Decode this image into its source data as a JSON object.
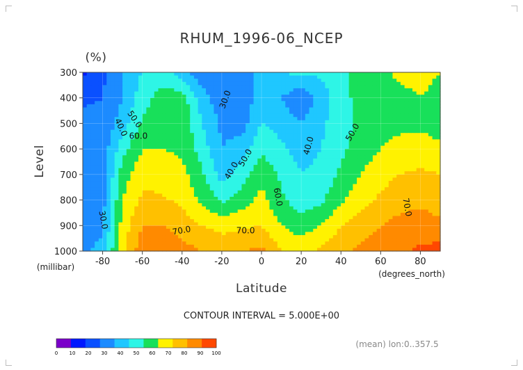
{
  "chart_data": {
    "type": "heatmap",
    "title": "RHUM_1996-06_NCEP",
    "units": "(%)",
    "xlabel": "Latitude",
    "ylabel": "Level",
    "x_units": "(degrees_north)",
    "y_units": "(millibar)",
    "xlim": [
      -90,
      90
    ],
    "ylim": [
      1000,
      300
    ],
    "x_ticks": [
      -80,
      -60,
      -40,
      -20,
      0,
      20,
      40,
      60,
      80
    ],
    "y_ticks": [
      300,
      400,
      500,
      600,
      700,
      800,
      900,
      1000
    ],
    "lat": [
      -90,
      -80,
      -70,
      -60,
      -50,
      -40,
      -30,
      -20,
      -10,
      0,
      10,
      20,
      30,
      40,
      50,
      60,
      70,
      80,
      90
    ],
    "levels": [
      300,
      400,
      500,
      600,
      700,
      800,
      900,
      1000
    ],
    "values": [
      [
        8,
        18,
        30,
        40,
        45,
        33,
        24,
        20,
        24,
        35,
        40,
        42,
        42,
        48,
        54,
        58,
        62,
        62,
        60
      ],
      [
        18,
        20,
        30,
        46,
        54,
        56,
        34,
        24,
        20,
        38,
        30,
        22,
        34,
        46,
        54,
        56,
        58,
        60,
        58
      ],
      [
        24,
        22,
        35,
        52,
        56,
        58,
        40,
        28,
        26,
        40,
        36,
        30,
        38,
        46,
        52,
        56,
        58,
        58,
        56
      ],
      [
        26,
        24,
        46,
        60,
        60,
        58,
        45,
        30,
        34,
        48,
        42,
        36,
        40,
        48,
        55,
        60,
        63,
        64,
        62
      ],
      [
        24,
        24,
        55,
        67,
        67,
        63,
        52,
        36,
        45,
        57,
        48,
        40,
        43,
        52,
        60,
        66,
        70,
        72,
        70
      ],
      [
        23,
        26,
        60,
        72,
        71,
        68,
        58,
        48,
        55,
        63,
        52,
        44,
        48,
        58,
        66,
        72,
        77,
        78,
        76
      ],
      [
        25,
        28,
        64,
        80,
        80,
        75,
        70,
        66,
        68,
        70,
        60,
        55,
        60,
        70,
        75,
        80,
        83,
        84,
        82
      ],
      [
        28,
        33,
        68,
        86,
        88,
        84,
        80,
        78,
        80,
        82,
        70,
        66,
        72,
        78,
        82,
        86,
        88,
        92,
        94
      ]
    ],
    "contour_interval": "CONTOUR INTERVAL = 5.000E+00",
    "contour_labels": [
      "30.0",
      "40.0",
      "50.0",
      "60.0",
      "70.0",
      "30.0",
      "40.0",
      "50.0",
      "60.0",
      "40.0",
      "50.0",
      "70.0",
      "70.0"
    ],
    "colorbar": {
      "ticks": [
        "0",
        "10",
        "20",
        "30",
        "40",
        "50",
        "60",
        "70",
        "80",
        "90",
        "100"
      ],
      "colors": [
        "#7a00c9",
        "#0018ff",
        "#0a50ff",
        "#1c8bff",
        "#1fc7ff",
        "#2ef5e6",
        "#18e05a",
        "#fff200",
        "#ffc000",
        "#ff8a00",
        "#ff4800",
        "#ff0000"
      ]
    },
    "footnote": "(mean) lon:0..357.5",
    "grid": true
  }
}
